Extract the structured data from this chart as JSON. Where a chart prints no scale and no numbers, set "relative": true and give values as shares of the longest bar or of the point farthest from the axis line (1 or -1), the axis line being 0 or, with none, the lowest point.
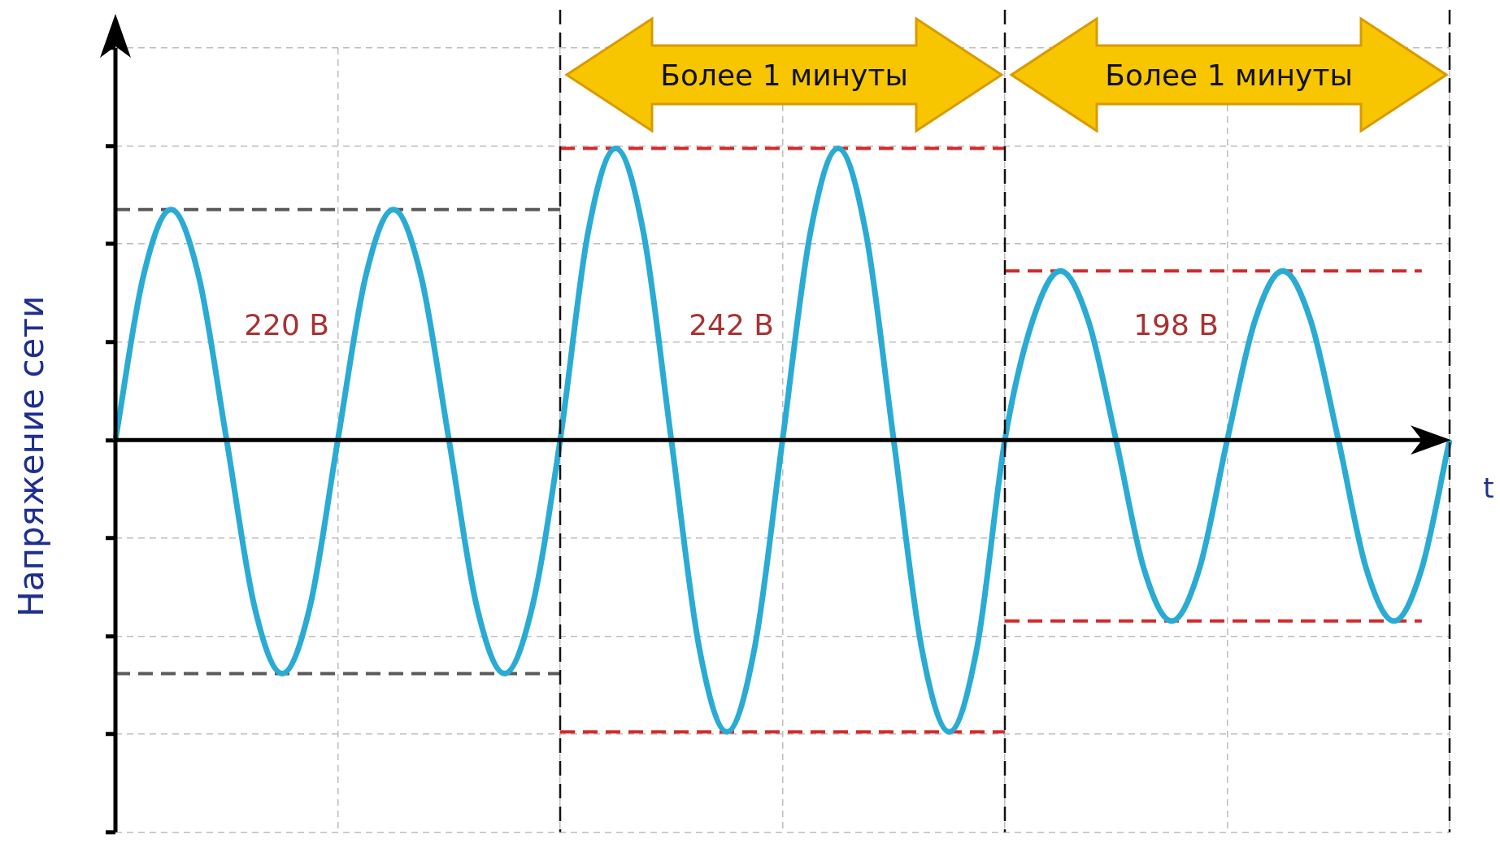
{
  "chart_data": {
    "type": "line",
    "relative": true,
    "xlabel": "t",
    "ylabel": "Напряжение сети",
    "legend": false,
    "grid": true,
    "marker": "none",
    "categories": [
      null,
      null,
      null,
      null,
      null,
      null,
      null,
      null,
      null,
      null,
      null,
      null,
      null,
      null,
      null,
      null,
      null,
      null,
      null,
      null,
      null,
      null,
      null,
      null,
      null,
      null,
      null,
      null,
      null,
      null,
      null,
      null,
      null,
      null,
      null,
      null,
      null,
      null,
      null,
      null,
      null,
      null,
      null,
      null,
      null,
      null,
      null,
      null,
      null
    ],
    "series": [
      {
        "color": "#29abd4",
        "line_style": "solid",
        "values": [
          0,
          0.56,
          0.79,
          0.56,
          0,
          -0.57,
          -0.8,
          -0.57,
          0,
          0.56,
          0.79,
          0.56,
          0,
          -0.57,
          -0.8,
          -0.57,
          0,
          0.71,
          1,
          0.71,
          0,
          -0.71,
          -1,
          -0.71,
          0,
          0.71,
          1,
          0.71,
          0,
          -0.71,
          -1,
          -0.71,
          0,
          0.41,
          0.58,
          0.41,
          0,
          -0.44,
          -0.62,
          -0.44,
          0,
          0.41,
          0.58,
          0.41,
          0,
          -0.44,
          -0.62,
          -0.44,
          0
        ]
      },
      {
        "color": "#5a5a5a",
        "line_style": "dashed",
        "values": [
          0.79,
          0.79,
          0.79,
          0.79,
          0.79,
          0.79,
          0.79,
          0.79,
          0.79,
          0.79,
          0.79,
          0.79,
          0.79,
          0.79,
          0.79,
          0.79,
          0.79,
          null,
          null,
          null,
          null,
          null,
          null,
          null,
          null,
          null,
          null,
          null,
          null,
          null,
          null,
          null,
          null,
          null,
          null,
          null,
          null,
          null,
          null,
          null,
          null,
          null,
          null,
          null,
          null,
          null,
          null,
          null,
          null
        ]
      },
      {
        "color": "#5a5a5a",
        "line_style": "dashed",
        "values": [
          -0.8,
          -0.8,
          -0.8,
          -0.8,
          -0.8,
          -0.8,
          -0.8,
          -0.8,
          -0.8,
          -0.8,
          -0.8,
          -0.8,
          -0.8,
          -0.8,
          -0.8,
          -0.8,
          -0.8,
          null,
          null,
          null,
          null,
          null,
          null,
          null,
          null,
          null,
          null,
          null,
          null,
          null,
          null,
          null,
          null,
          null,
          null,
          null,
          null,
          null,
          null,
          null,
          null,
          null,
          null,
          null,
          null,
          null,
          null,
          null,
          null
        ]
      },
      {
        "color": "#d42a2a",
        "line_style": "dashed",
        "values": [
          null,
          null,
          null,
          null,
          null,
          null,
          null,
          null,
          null,
          null,
          null,
          null,
          null,
          null,
          null,
          null,
          1,
          1,
          1,
          1,
          1,
          1,
          1,
          1,
          1,
          1,
          1,
          1,
          1,
          1,
          1,
          1,
          1,
          null,
          null,
          null,
          null,
          null,
          null,
          null,
          null,
          null,
          null,
          null,
          null,
          null,
          null,
          null,
          null
        ]
      },
      {
        "color": "#d42a2a",
        "line_style": "dashed",
        "values": [
          null,
          null,
          null,
          null,
          null,
          null,
          null,
          null,
          null,
          null,
          null,
          null,
          null,
          null,
          null,
          null,
          -1,
          -1,
          -1,
          -1,
          -1,
          -1,
          -1,
          -1,
          -1,
          -1,
          -1,
          -1,
          -1,
          -1,
          -1,
          -1,
          -1,
          null,
          null,
          null,
          null,
          null,
          null,
          null,
          null,
          null,
          null,
          null,
          null,
          null,
          null,
          null,
          null
        ]
      },
      {
        "color": "#d42a2a",
        "line_style": "dashed",
        "values": [
          null,
          null,
          null,
          null,
          null,
          null,
          null,
          null,
          null,
          null,
          null,
          null,
          null,
          null,
          null,
          null,
          null,
          null,
          null,
          null,
          null,
          null,
          null,
          null,
          null,
          null,
          null,
          null,
          null,
          null,
          null,
          null,
          0.58,
          0.58,
          0.58,
          0.58,
          0.58,
          0.58,
          0.58,
          0.58,
          0.58,
          0.58,
          0.58,
          0.58,
          0.58,
          0.58,
          0.58,
          0.58,
          null
        ]
      },
      {
        "color": "#d42a2a",
        "line_style": "dashed",
        "values": [
          null,
          null,
          null,
          null,
          null,
          null,
          null,
          null,
          null,
          null,
          null,
          null,
          null,
          null,
          null,
          null,
          null,
          null,
          null,
          null,
          null,
          null,
          null,
          null,
          null,
          null,
          null,
          null,
          null,
          null,
          null,
          null,
          -0.62,
          -0.62,
          -0.62,
          -0.62,
          -0.62,
          -0.62,
          -0.62,
          -0.62,
          -0.62,
          -0.62,
          -0.62,
          -0.62,
          -0.62,
          -0.62,
          -0.62,
          -0.62,
          null
        ]
      }
    ],
    "annotations": [
      "Более 1 минуты",
      "Более 1 минуты",
      "220 В",
      "242 В",
      "198 В"
    ]
  }
}
